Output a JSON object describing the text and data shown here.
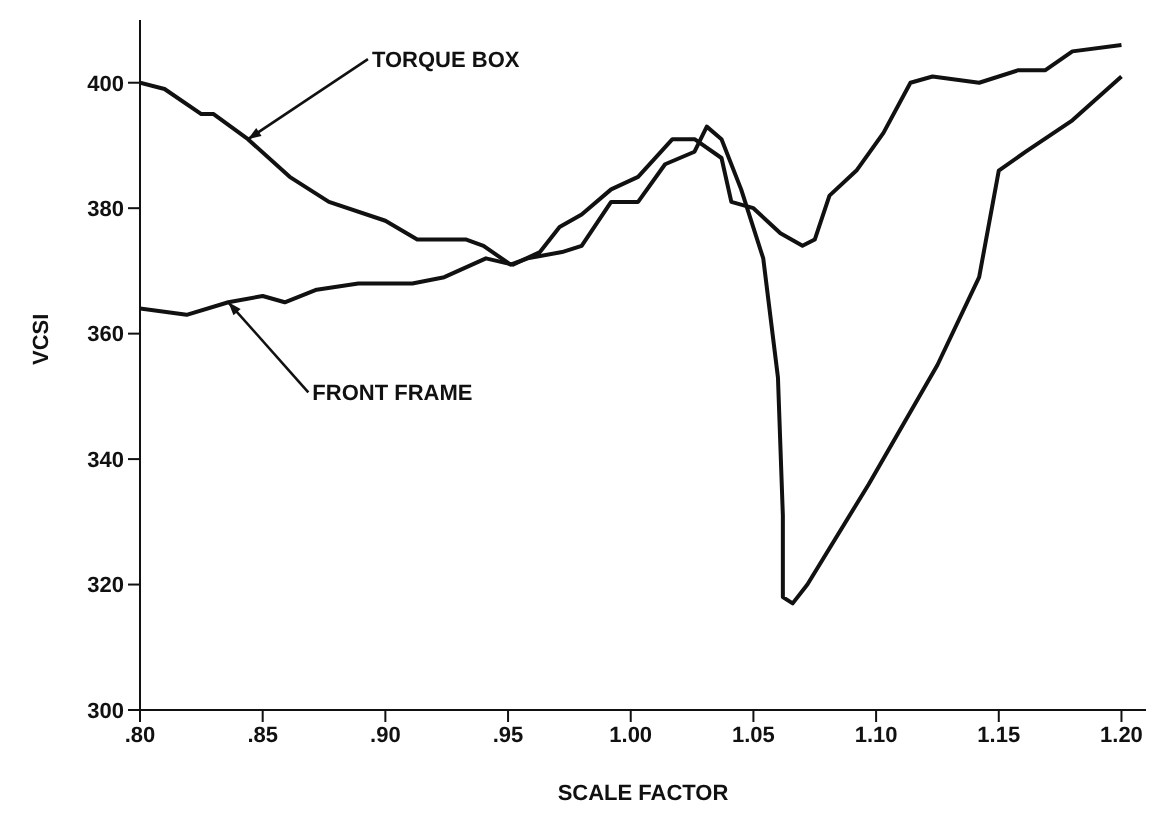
{
  "chart_data": {
    "type": "line",
    "xlabel": "SCALE FACTOR",
    "ylabel": "VCSI",
    "xlim": [
      0.8,
      1.21
    ],
    "ylim": [
      300,
      410
    ],
    "xticks": [
      {
        "value": 0.8,
        "label": ".80"
      },
      {
        "value": 0.85,
        "label": ".85"
      },
      {
        "value": 0.9,
        "label": ".90"
      },
      {
        "value": 0.95,
        "label": ".95"
      },
      {
        "value": 1.0,
        "label": "1.00"
      },
      {
        "value": 1.05,
        "label": "1.05"
      },
      {
        "value": 1.1,
        "label": "1.10"
      },
      {
        "value": 1.15,
        "label": "1.15"
      },
      {
        "value": 1.2,
        "label": "1.20"
      }
    ],
    "yticks": [
      300,
      320,
      340,
      360,
      380,
      400
    ],
    "grid": false,
    "legend": false,
    "marker": "none",
    "line_style": "solid",
    "series": [
      {
        "name": "TORQUE BOX",
        "color": "#111111",
        "x": [
          0.8,
          0.81,
          0.825,
          0.83,
          0.844,
          0.861,
          0.877,
          0.9,
          0.913,
          0.933,
          0.94,
          0.951,
          0.958,
          0.972,
          0.98,
          0.992,
          1.003,
          1.014,
          1.026,
          1.031,
          1.037,
          1.045,
          1.054,
          1.06,
          1.062,
          1.062,
          1.066,
          1.072,
          1.097,
          1.125,
          1.142,
          1.15,
          1.161,
          1.18,
          1.2
        ],
        "values": [
          400,
          399,
          395,
          395,
          391,
          385,
          381,
          378,
          375,
          375,
          374,
          371,
          372,
          373,
          374,
          381,
          381,
          387,
          389,
          393,
          391,
          383,
          372,
          353,
          331,
          318,
          317,
          320,
          336,
          355,
          369,
          386,
          389,
          394,
          401
        ]
      },
      {
        "name": "FRONT FRAME",
        "color": "#111111",
        "x": [
          0.8,
          0.819,
          0.836,
          0.85,
          0.859,
          0.872,
          0.889,
          0.9,
          0.911,
          0.924,
          0.941,
          0.952,
          0.963,
          0.971,
          0.98,
          0.992,
          1.003,
          1.017,
          1.026,
          1.037,
          1.041,
          1.05,
          1.061,
          1.07,
          1.075,
          1.081,
          1.092,
          1.103,
          1.114,
          1.123,
          1.142,
          1.158,
          1.169,
          1.18,
          1.2
        ],
        "values": [
          364,
          363,
          365,
          366,
          365,
          367,
          368,
          368,
          368,
          369,
          372,
          371,
          373,
          377,
          379,
          383,
          385,
          391,
          391,
          388,
          381,
          380,
          376,
          374,
          375,
          382,
          386,
          392,
          400,
          401,
          400,
          402,
          402,
          405,
          406
        ]
      }
    ]
  }
}
